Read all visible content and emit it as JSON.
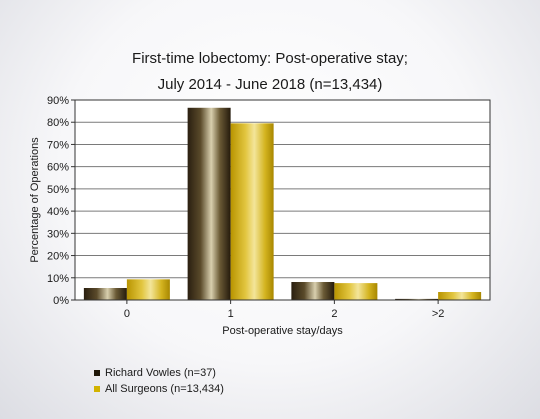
{
  "chart_data": {
    "type": "bar",
    "title": "First-time lobectomy: Post-operative stay;",
    "subtitle": "July 2014 - June 2018 (n=13,434)",
    "xlabel": "Post-operative stay/days",
    "ylabel": "Percentage of Operations",
    "categories": [
      "0",
      "1",
      "2",
      ">2"
    ],
    "ylim": [
      0,
      90
    ],
    "yticks": [
      "0%",
      "10%",
      "20%",
      "30%",
      "40%",
      "50%",
      "60%",
      "70%",
      "80%",
      "90%"
    ],
    "grid": true,
    "legend_position": "bottom-left",
    "series": [
      {
        "name": "Richard Vowles (n=37)",
        "values": [
          5.4,
          86.5,
          8.1,
          0.5
        ],
        "color": "#2a1f10"
      },
      {
        "name": "All Surgeons (n=13,434)",
        "values": [
          9.3,
          79.5,
          7.6,
          3.6
        ],
        "color": "#c9a800"
      }
    ]
  }
}
